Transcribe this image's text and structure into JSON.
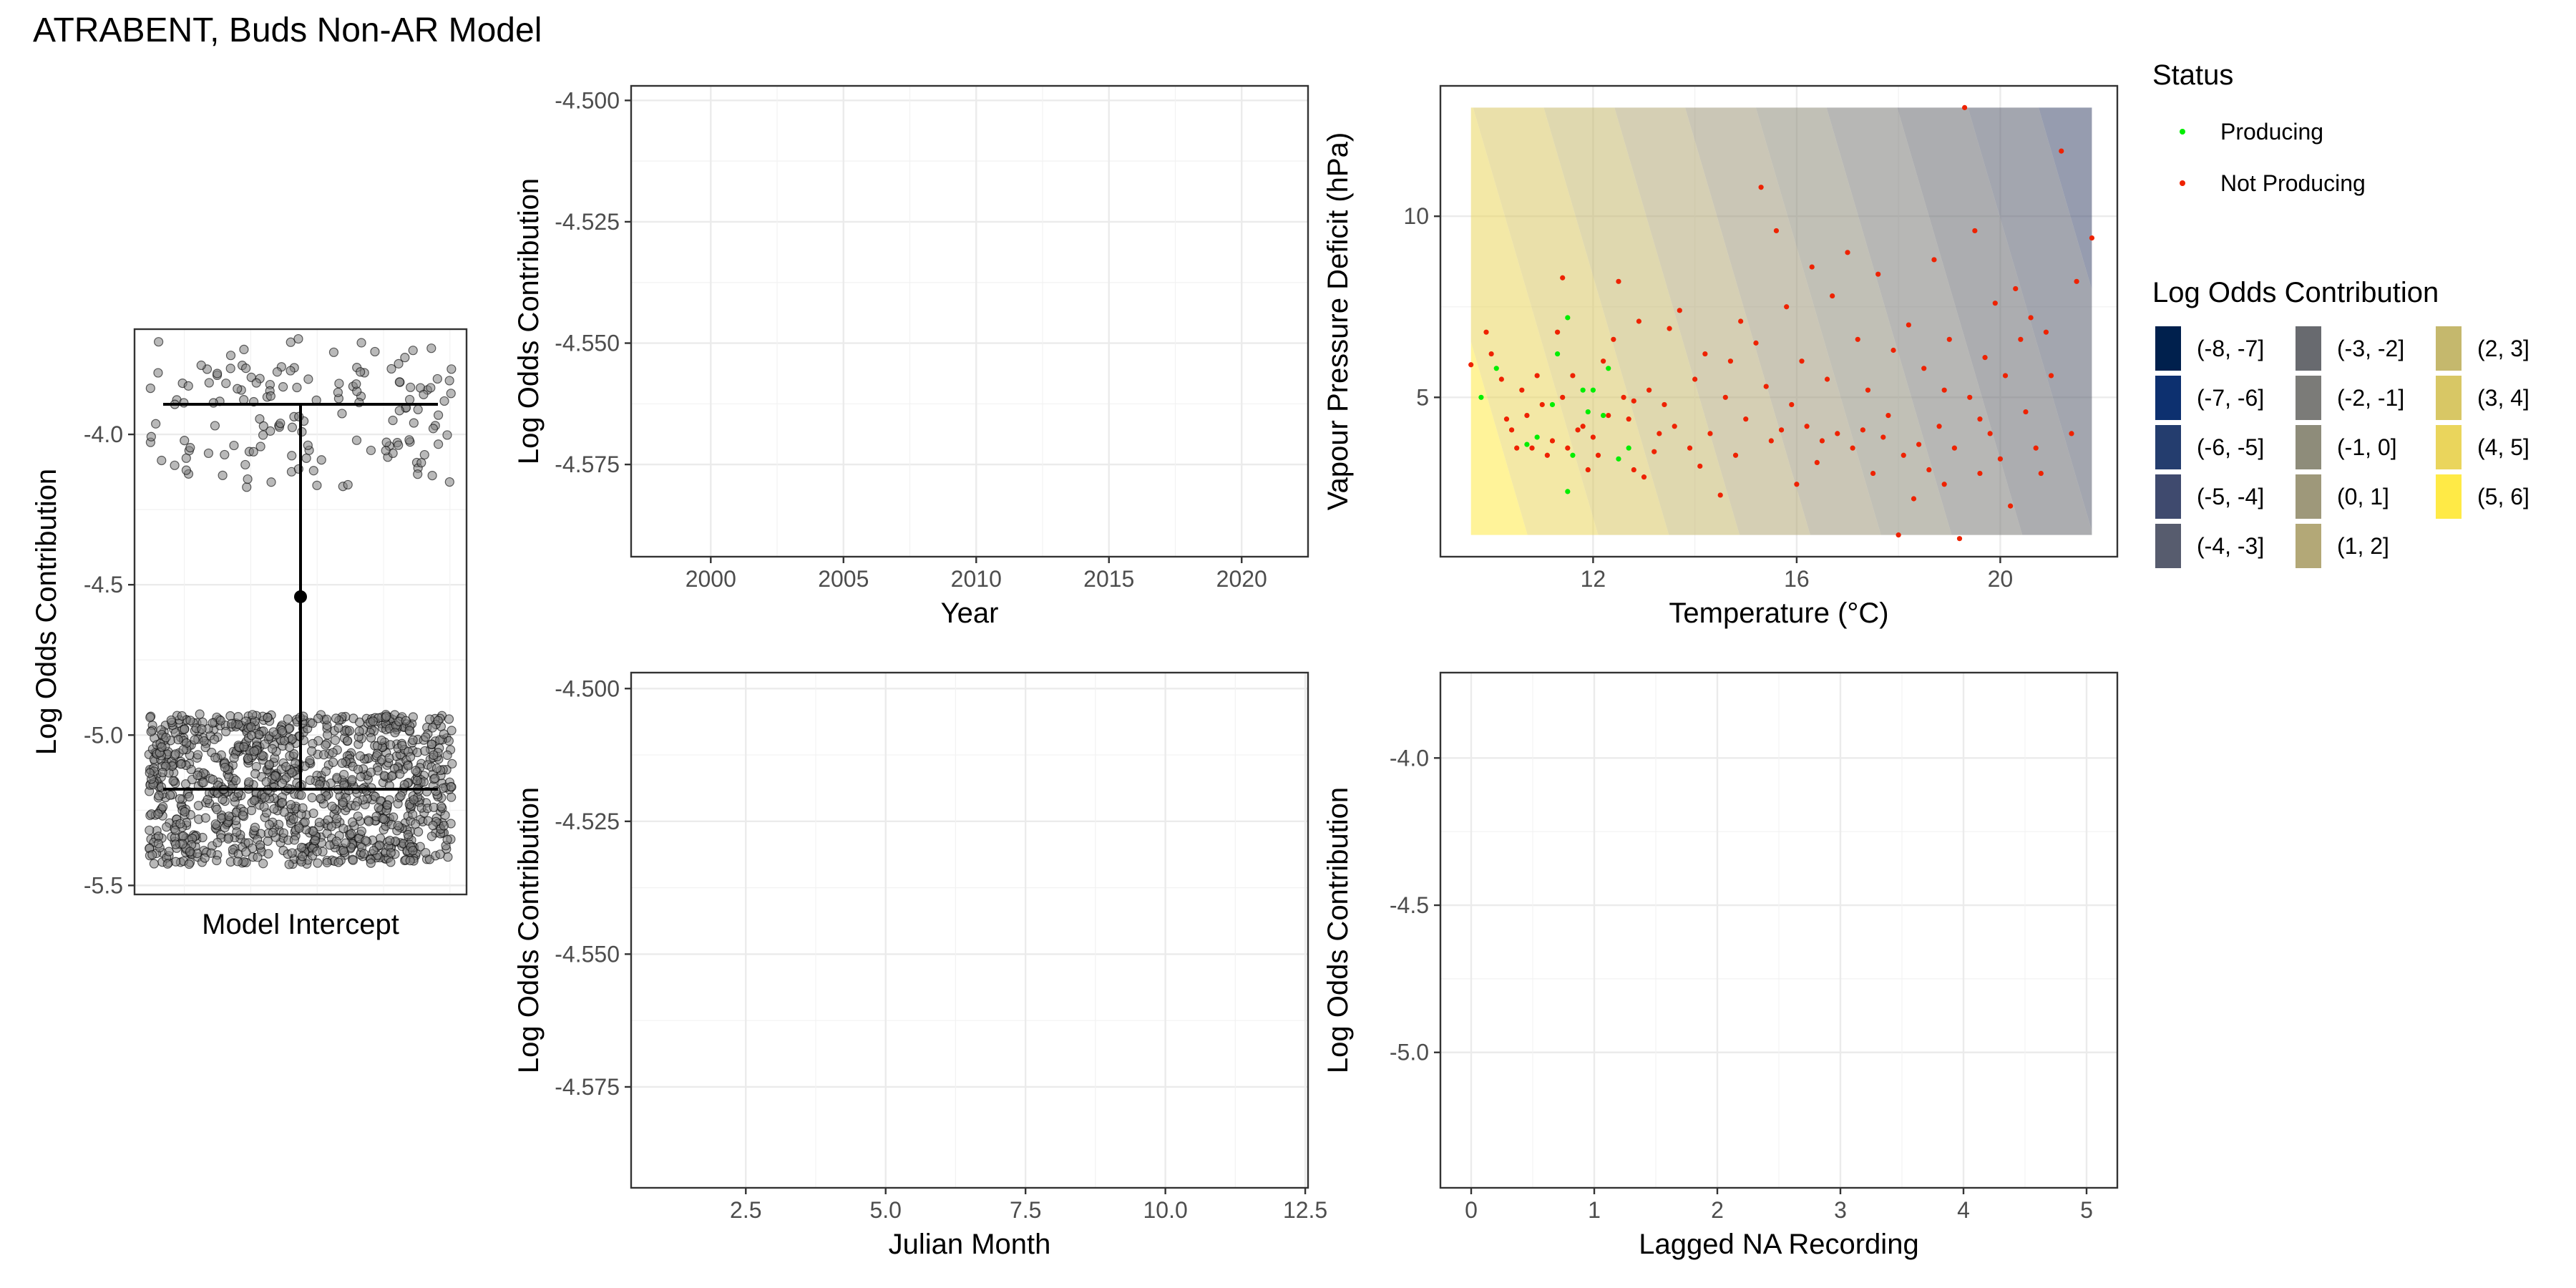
{
  "page_title": "ATRABENT, Buds Non-AR Model",
  "chart_data": [
    {
      "id": "intercept",
      "type": "scatter",
      "variant": "jitter-with-summary",
      "xlabel": "Model Intercept",
      "ylabel": "Log Odds Contribution",
      "ylim": [
        -5.53,
        -3.65
      ],
      "yticks": [
        -5.5,
        -5.0,
        -4.5,
        -4.0
      ],
      "ytick_labels": [
        "-5.5",
        "-5.0",
        "-4.5",
        "-4.0"
      ],
      "clusters": [
        {
          "center": -3.9,
          "spread_low": -4.18,
          "spread_high": -3.68,
          "approx_count": 150
        },
        {
          "center": -5.18,
          "spread_low": -5.43,
          "spread_high": -4.93,
          "approx_count": 1100
        }
      ],
      "summary": {
        "mean": -4.54,
        "upper": -3.9,
        "lower": -5.18
      },
      "point_color": "#808080",
      "grid": true
    },
    {
      "id": "year",
      "type": "line",
      "xlabel": "Year",
      "ylabel": "Log Odds Contribution",
      "xlim": [
        1997,
        2022.5
      ],
      "ylim": [
        -4.594,
        -4.497
      ],
      "xticks": [
        2000,
        2005,
        2010,
        2015,
        2020
      ],
      "xtick_labels": [
        "2000",
        "2005",
        "2010",
        "2015",
        "2020"
      ],
      "yticks": [
        -4.5,
        -4.525,
        -4.55,
        -4.575
      ],
      "ytick_labels": [
        "-4.500",
        "-4.525",
        "-4.550",
        "-4.575"
      ],
      "series": [],
      "grid": true
    },
    {
      "id": "temp_vpd",
      "type": "heatmap",
      "xlabel": "Temperature (°C)",
      "ylabel": "Vapour Pressure Deficit (hPa)",
      "xlim": [
        9.0,
        22.3
      ],
      "ylim": [
        0.6,
        13.6
      ],
      "xticks": [
        12,
        16,
        20
      ],
      "xtick_labels": [
        "12",
        "16",
        "20"
      ],
      "yticks": [
        5,
        10
      ],
      "ytick_labels": [
        "5",
        "10"
      ],
      "surface": {
        "x_range": [
          9.6,
          21.8
        ],
        "y_range": [
          1.2,
          13.0
        ],
        "value_at_min": 5.8,
        "value_at_max": -3.8
      },
      "series": [
        {
          "name": "Producing",
          "color": "#00ee00",
          "points": [
            [
              9.8,
              5.0
            ],
            [
              10.1,
              5.8
            ],
            [
              10.7,
              3.7
            ],
            [
              11.2,
              4.8
            ],
            [
              11.5,
              7.2
            ],
            [
              11.5,
              2.4
            ],
            [
              11.6,
              3.4
            ],
            [
              11.8,
              5.2
            ],
            [
              12.0,
              5.2
            ],
            [
              12.2,
              4.5
            ],
            [
              12.3,
              5.8
            ],
            [
              12.5,
              3.3
            ],
            [
              12.7,
              3.6
            ],
            [
              11.9,
              4.6
            ],
            [
              11.3,
              6.2
            ],
            [
              10.9,
              3.9
            ]
          ]
        },
        {
          "name": "Not Producing",
          "color": "#ee2200",
          "points": [
            [
              9.6,
              5.9
            ],
            [
              9.9,
              6.8
            ],
            [
              10.0,
              6.2
            ],
            [
              10.2,
              5.5
            ],
            [
              10.4,
              4.1
            ],
            [
              10.5,
              3.6
            ],
            [
              10.6,
              5.2
            ],
            [
              10.7,
              4.5
            ],
            [
              10.8,
              3.6
            ],
            [
              10.9,
              5.6
            ],
            [
              11.0,
              4.8
            ],
            [
              11.1,
              3.4
            ],
            [
              11.2,
              3.8
            ],
            [
              11.3,
              6.8
            ],
            [
              11.4,
              8.3
            ],
            [
              11.5,
              3.6
            ],
            [
              11.6,
              5.6
            ],
            [
              11.7,
              4.1
            ],
            [
              11.8,
              4.2
            ],
            [
              11.9,
              3.0
            ],
            [
              12.0,
              3.9
            ],
            [
              12.1,
              3.4
            ],
            [
              12.2,
              6.0
            ],
            [
              12.3,
              4.5
            ],
            [
              12.4,
              6.6
            ],
            [
              12.5,
              8.2
            ],
            [
              12.6,
              5.0
            ],
            [
              12.7,
              4.4
            ],
            [
              12.8,
              3.0
            ],
            [
              12.9,
              7.1
            ],
            [
              13.0,
              2.8
            ],
            [
              13.1,
              5.2
            ],
            [
              13.2,
              3.5
            ],
            [
              13.4,
              4.8
            ],
            [
              13.5,
              6.9
            ],
            [
              13.6,
              4.2
            ],
            [
              13.7,
              7.4
            ],
            [
              13.9,
              3.6
            ],
            [
              14.0,
              5.5
            ],
            [
              14.2,
              6.2
            ],
            [
              14.3,
              4.0
            ],
            [
              14.5,
              2.3
            ],
            [
              14.6,
              5.0
            ],
            [
              14.8,
              3.4
            ],
            [
              14.9,
              7.1
            ],
            [
              15.0,
              4.4
            ],
            [
              15.2,
              6.5
            ],
            [
              15.3,
              10.8
            ],
            [
              15.5,
              3.8
            ],
            [
              15.6,
              9.6
            ],
            [
              15.8,
              7.5
            ],
            [
              15.9,
              4.8
            ],
            [
              16.0,
              2.6
            ],
            [
              16.1,
              6.0
            ],
            [
              16.3,
              8.6
            ],
            [
              16.4,
              3.2
            ],
            [
              16.6,
              5.5
            ],
            [
              16.7,
              7.8
            ],
            [
              16.8,
              4.0
            ],
            [
              17.0,
              9.0
            ],
            [
              17.1,
              3.6
            ],
            [
              17.2,
              6.6
            ],
            [
              17.4,
              5.2
            ],
            [
              17.5,
              2.9
            ],
            [
              17.6,
              8.4
            ],
            [
              17.8,
              4.5
            ],
            [
              17.9,
              6.3
            ],
            [
              18.0,
              1.2
            ],
            [
              18.1,
              3.4
            ],
            [
              18.2,
              7.0
            ],
            [
              18.3,
              2.2
            ],
            [
              18.5,
              5.8
            ],
            [
              18.6,
              3.0
            ],
            [
              18.7,
              8.8
            ],
            [
              18.8,
              4.2
            ],
            [
              18.9,
              2.6
            ],
            [
              19.0,
              6.6
            ],
            [
              19.1,
              3.6
            ],
            [
              19.2,
              1.1
            ],
            [
              19.3,
              13.0
            ],
            [
              19.4,
              5.0
            ],
            [
              19.5,
              9.6
            ],
            [
              19.6,
              2.9
            ],
            [
              19.7,
              6.1
            ],
            [
              19.8,
              4.0
            ],
            [
              19.9,
              7.6
            ],
            [
              20.0,
              3.3
            ],
            [
              20.1,
              5.6
            ],
            [
              20.2,
              2.0
            ],
            [
              20.3,
              8.0
            ],
            [
              20.4,
              6.6
            ],
            [
              20.5,
              4.6
            ],
            [
              20.6,
              7.2
            ],
            [
              20.7,
              3.6
            ],
            [
              20.8,
              2.9
            ],
            [
              21.0,
              5.6
            ],
            [
              21.2,
              11.8
            ],
            [
              21.4,
              4.0
            ],
            [
              21.5,
              8.2
            ],
            [
              21.8,
              9.4
            ],
            [
              16.2,
              4.2
            ],
            [
              16.5,
              3.8
            ],
            [
              17.3,
              4.1
            ],
            [
              17.7,
              3.9
            ],
            [
              18.4,
              3.7
            ],
            [
              19.6,
              4.4
            ],
            [
              12.8,
              4.9
            ],
            [
              13.3,
              4.0
            ],
            [
              14.1,
              3.1
            ],
            [
              15.4,
              5.3
            ],
            [
              18.9,
              5.2
            ],
            [
              20.9,
              6.8
            ],
            [
              11.4,
              5.0
            ],
            [
              10.3,
              4.4
            ],
            [
              14.7,
              6.0
            ],
            [
              15.7,
              4.1
            ]
          ]
        }
      ],
      "legend_status_title": "Status",
      "legend_fill_title": "Log Odds Contribution",
      "legend_fill_bins": [
        {
          "label": "(-8, -7]",
          "color": "#00204d"
        },
        {
          "label": "(-7, -6]",
          "color": "#0d306f"
        },
        {
          "label": "(-6, -5]",
          "color": "#243d6e"
        },
        {
          "label": "(-5, -4]",
          "color": "#3f4a6e"
        },
        {
          "label": "(-4, -3]",
          "color": "#575c6e"
        },
        {
          "label": "(-3, -2]",
          "color": "#686a6f"
        },
        {
          "label": "(-2, -1]",
          "color": "#7b7b78"
        },
        {
          "label": "(-1, 0]",
          "color": "#8e8c7a"
        },
        {
          "label": "(0, 1]",
          "color": "#9e987a"
        },
        {
          "label": "(1, 2]",
          "color": "#b3a877"
        },
        {
          "label": "(2, 3]",
          "color": "#c5b86d"
        },
        {
          "label": "(3, 4]",
          "color": "#d8c765"
        },
        {
          "label": "(4, 5]",
          "color": "#ead55c"
        },
        {
          "label": "(5, 6]",
          "color": "#ffea46"
        }
      ]
    },
    {
      "id": "julian_month",
      "type": "line",
      "xlabel": "Julian Month",
      "ylabel": "Log Odds Contribution",
      "xlim": [
        0.45,
        12.55
      ],
      "ylim": [
        -4.594,
        -4.497
      ],
      "xticks": [
        2.5,
        5.0,
        7.5,
        10.0,
        12.5
      ],
      "xtick_labels": [
        "2.5",
        "5.0",
        "7.5",
        "10.0",
        "12.5"
      ],
      "yticks": [
        -4.5,
        -4.525,
        -4.55,
        -4.575
      ],
      "ytick_labels": [
        "-4.500",
        "-4.525",
        "-4.550",
        "-4.575"
      ],
      "series": [],
      "grid": true
    },
    {
      "id": "lagged_na",
      "type": "line",
      "xlabel": "Lagged NA Recording",
      "ylabel": "Log Odds Contribution",
      "xlim": [
        -0.25,
        5.25
      ],
      "ylim": [
        -5.46,
        -3.71
      ],
      "xticks": [
        0,
        1,
        2,
        3,
        4,
        5
      ],
      "xtick_labels": [
        "0",
        "1",
        "2",
        "3",
        "4",
        "5"
      ],
      "yticks": [
        -4.0,
        -4.5,
        -5.0
      ],
      "ytick_labels": [
        "-4.0",
        "-4.5",
        "-5.0"
      ],
      "series": [],
      "grid": true
    }
  ]
}
